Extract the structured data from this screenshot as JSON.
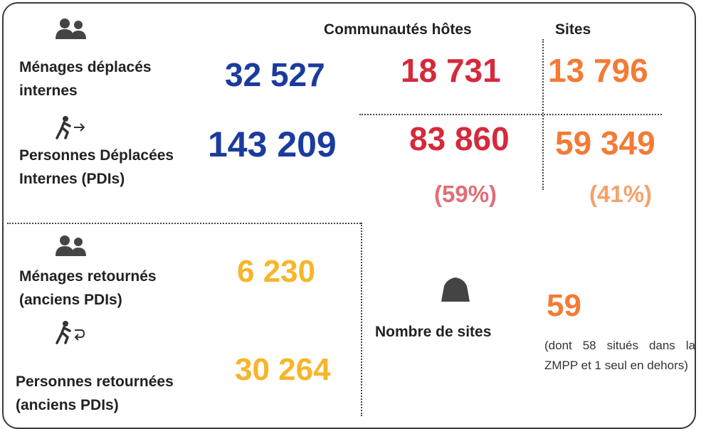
{
  "displaced": {
    "households_label": "Ménages déplacés internes",
    "households_total": "32 527",
    "persons_label": "Personnes Déplacées Internes (PDIs)",
    "persons_total": "143 209"
  },
  "host_communities": {
    "heading": "Communautés hôtes",
    "households": "18 731",
    "persons": "83 860",
    "share": "(59%)"
  },
  "sites": {
    "heading": "Sites",
    "households": "13 796",
    "persons": "59 349",
    "share": "(41%)",
    "count_label": "Nombre de sites",
    "count": "59",
    "note": "(dont 58 situés dans la ZMPP et 1 seul en dehors)"
  },
  "returned": {
    "households_label": "Ménages retournés (anciens PDIs)",
    "households_total": "6 230",
    "persons_label": "Personnes retournées (anciens PDIs)",
    "persons_total": "30 264"
  }
}
